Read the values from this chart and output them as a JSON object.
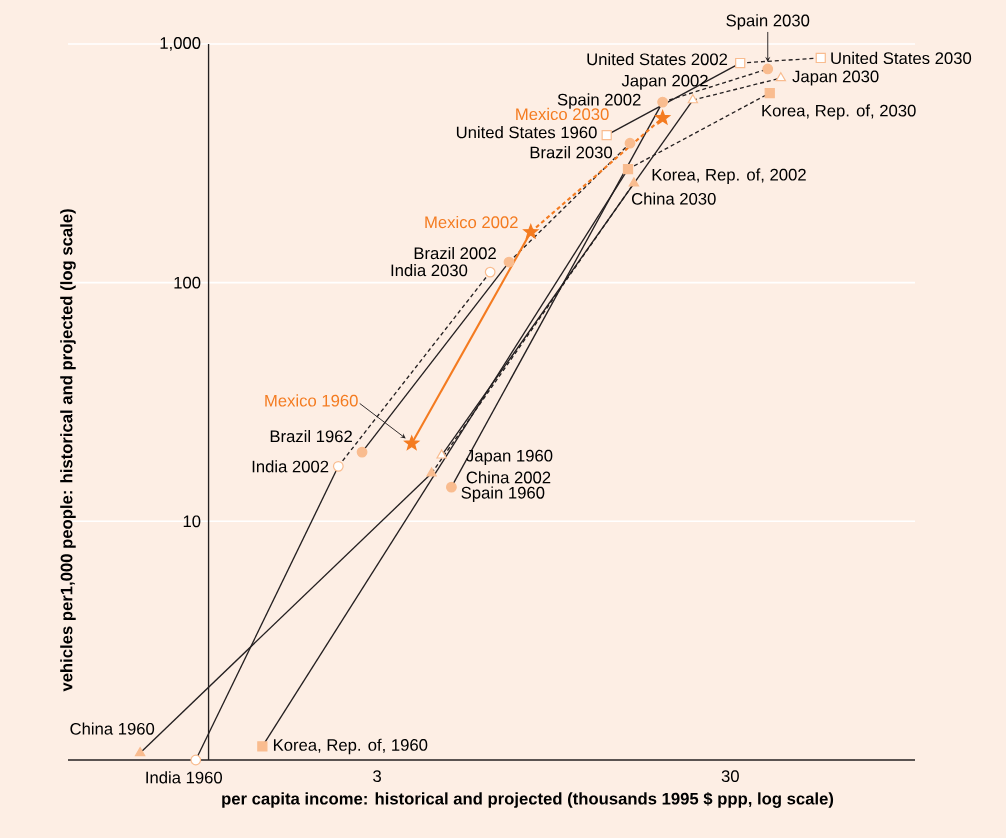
{
  "chart_data": {
    "type": "line",
    "xlabel": "per capita income: historical and projected (thousands 1995 $ ppp, log scale)",
    "ylabel": "vehicles per1,000 people: historical and projected  (log scale)",
    "log": "xy",
    "xlim": [
      0.4,
      100
    ],
    "ylim": [
      1,
      1000
    ],
    "xticks": [
      3,
      30
    ],
    "yticks": [
      10,
      100,
      {
        "value": 1000,
        "label": "1,000"
      }
    ],
    "grid": "y",
    "series": [
      {
        "color": "#231f20",
        "marker": "triangle",
        "line_style": "solid",
        "x": [
          0.64,
          4.28
        ],
        "values": [
          1.07,
          15.9
        ],
        "colors": [
          "#f9bc8f",
          "#f9bc8f"
        ]
      },
      {
        "color": "#231f20",
        "marker": "triangle",
        "line_style": "dashed",
        "x": [
          4.28,
          16.0
        ],
        "values": [
          15.9,
          261
        ],
        "colors": [
          null,
          "#f9bc8f"
        ]
      },
      {
        "color": "#231f20",
        "marker": "circle",
        "line_style": "solid",
        "x": [
          0.92,
          2.33
        ],
        "values": [
          1.0,
          17.0
        ],
        "colors": [
          "#ffffff",
          "#ffffff"
        ]
      },
      {
        "color": "#231f20",
        "marker": "circle",
        "line_style": "dashed",
        "x": [
          2.33,
          6.27
        ],
        "values": [
          17.0,
          110.7
        ],
        "colors": [
          null,
          "#ffffff"
        ]
      },
      {
        "color": "#231f20",
        "marker": "circle",
        "line_style": "solid",
        "x": [
          2.72,
          7.09
        ],
        "values": [
          19.5,
          122
        ],
        "colors": [
          "#f9bc8f",
          "#f9bc8f"
        ]
      },
      {
        "color": "#231f20",
        "marker": "circle",
        "line_style": "dashed",
        "x": [
          7.09,
          15.6
        ],
        "values": [
          122,
          384
        ],
        "colors": [
          null,
          "#f9bc8f"
        ]
      },
      {
        "color": "#231f20",
        "marker": "square",
        "line_style": "solid",
        "x": [
          1.42,
          15.4
        ],
        "values": [
          1.14,
          299
        ],
        "colors": [
          "#f9bc8f",
          "#f9bc8f"
        ]
      },
      {
        "color": "#231f20",
        "marker": "square",
        "line_style": "dashed",
        "x": [
          15.4,
          38.8
        ],
        "values": [
          299,
          623
        ],
        "colors": [
          null,
          "#f9bc8f"
        ]
      },
      {
        "color": "#231f20",
        "marker": "triangle",
        "line_style": "solid",
        "x": [
          4.57,
          23.5
        ],
        "values": [
          18.9,
          582
        ],
        "colors": [
          "#ffffff",
          "#ffffff"
        ]
      },
      {
        "color": "#231f20",
        "marker": "triangle",
        "line_style": "dashed",
        "x": [
          23.5,
          41.7
        ],
        "values": [
          582,
          720
        ],
        "colors": [
          null,
          "#ffffff"
        ]
      },
      {
        "color": "#231f20",
        "marker": "circle",
        "line_style": "solid",
        "x": [
          4.87,
          19.3
        ],
        "values": [
          13.9,
          571
        ],
        "colors": [
          "#f9bc8f",
          "#f9bc8f"
        ]
      },
      {
        "color": "#231f20",
        "marker": "circle",
        "line_style": "dashed",
        "x": [
          19.3,
          38.3
        ],
        "values": [
          571,
          786
        ],
        "colors": [
          null,
          "#f9bc8f"
        ]
      },
      {
        "color": "#231f20",
        "marker": "square",
        "line_style": "solid",
        "x": [
          13.4,
          32.0
        ],
        "values": [
          415,
          832
        ],
        "colors": [
          "#ffffff",
          "#ffffff"
        ]
      },
      {
        "color": "#231f20",
        "marker": "square",
        "line_style": "dashed",
        "x": [
          32.0,
          54.1
        ],
        "values": [
          832,
          874
        ],
        "colors": [
          null,
          "#ffffff"
        ]
      },
      {
        "color": "#f47b20",
        "marker": "star",
        "line_style": "solid",
        "x": [
          3.76,
          8.17
        ],
        "values": [
          21.2,
          163
        ],
        "colors": [
          "#f47b20",
          "#f47b20"
        ]
      },
      {
        "color": "#f47b20",
        "marker": "star",
        "line_style": "dashed",
        "x": [
          8.17,
          19.3
        ],
        "values": [
          163,
          490
        ],
        "colors": [
          null,
          "#f47b20"
        ]
      }
    ],
    "annotations": [
      {
        "text": "China 1960",
        "x": 0.64,
        "y": 1.07
      },
      {
        "text": "India 1960",
        "x": 0.92,
        "y": 1.0
      },
      {
        "text": "Korea, Rep. of, 1960",
        "x": 1.42,
        "y": 1.14
      },
      {
        "text": "Brazil 1962",
        "x": 2.72,
        "y": 19.5
      },
      {
        "text": "India 2002",
        "x": 2.33,
        "y": 17.0
      },
      "Mexico 1960",
      {
        "text": "Japan 1960",
        "x": 4.57,
        "y": 18.9
      },
      {
        "text": "China 2002",
        "x": 4.28,
        "y": 15.9
      },
      {
        "text": "Spain 1960",
        "x": 4.87,
        "y": 13.9
      },
      {
        "text": "Brazil 2002",
        "x": 7.09,
        "y": 122
      },
      {
        "text": "India 2030",
        "x": 6.27,
        "y": 110.7
      },
      {
        "text": "Mexico 2002",
        "x": 8.17,
        "y": 163
      },
      {
        "text": "Brazil 2030",
        "x": 15.6,
        "y": 384
      },
      {
        "text": "Korea, Rep. of, 2002",
        "x": 15.4,
        "y": 299
      },
      {
        "text": "China 2030",
        "x": 16.0,
        "y": 261
      },
      {
        "text": "United States 1960",
        "x": 13.4,
        "y": 415
      },
      "Mexico 2030",
      {
        "text": "Spain 2002",
        "x": 19.3,
        "y": 571
      },
      {
        "text": "Japan 2002",
        "x": 23.5,
        "y": 582
      },
      {
        "text": "United States 2002",
        "x": 32.0,
        "y": 832
      },
      {
        "text": "Spain 2030",
        "x": 38.3,
        "y": 786
      },
      {
        "text": "United States 2030",
        "x": 54.1,
        "y": 874
      },
      {
        "text": "Japan 2030",
        "x": 41.7,
        "y": 720
      },
      {
        "text": "Korea, Rep. of, 2030",
        "x": 38.8,
        "y": 623
      }
    ]
  }
}
